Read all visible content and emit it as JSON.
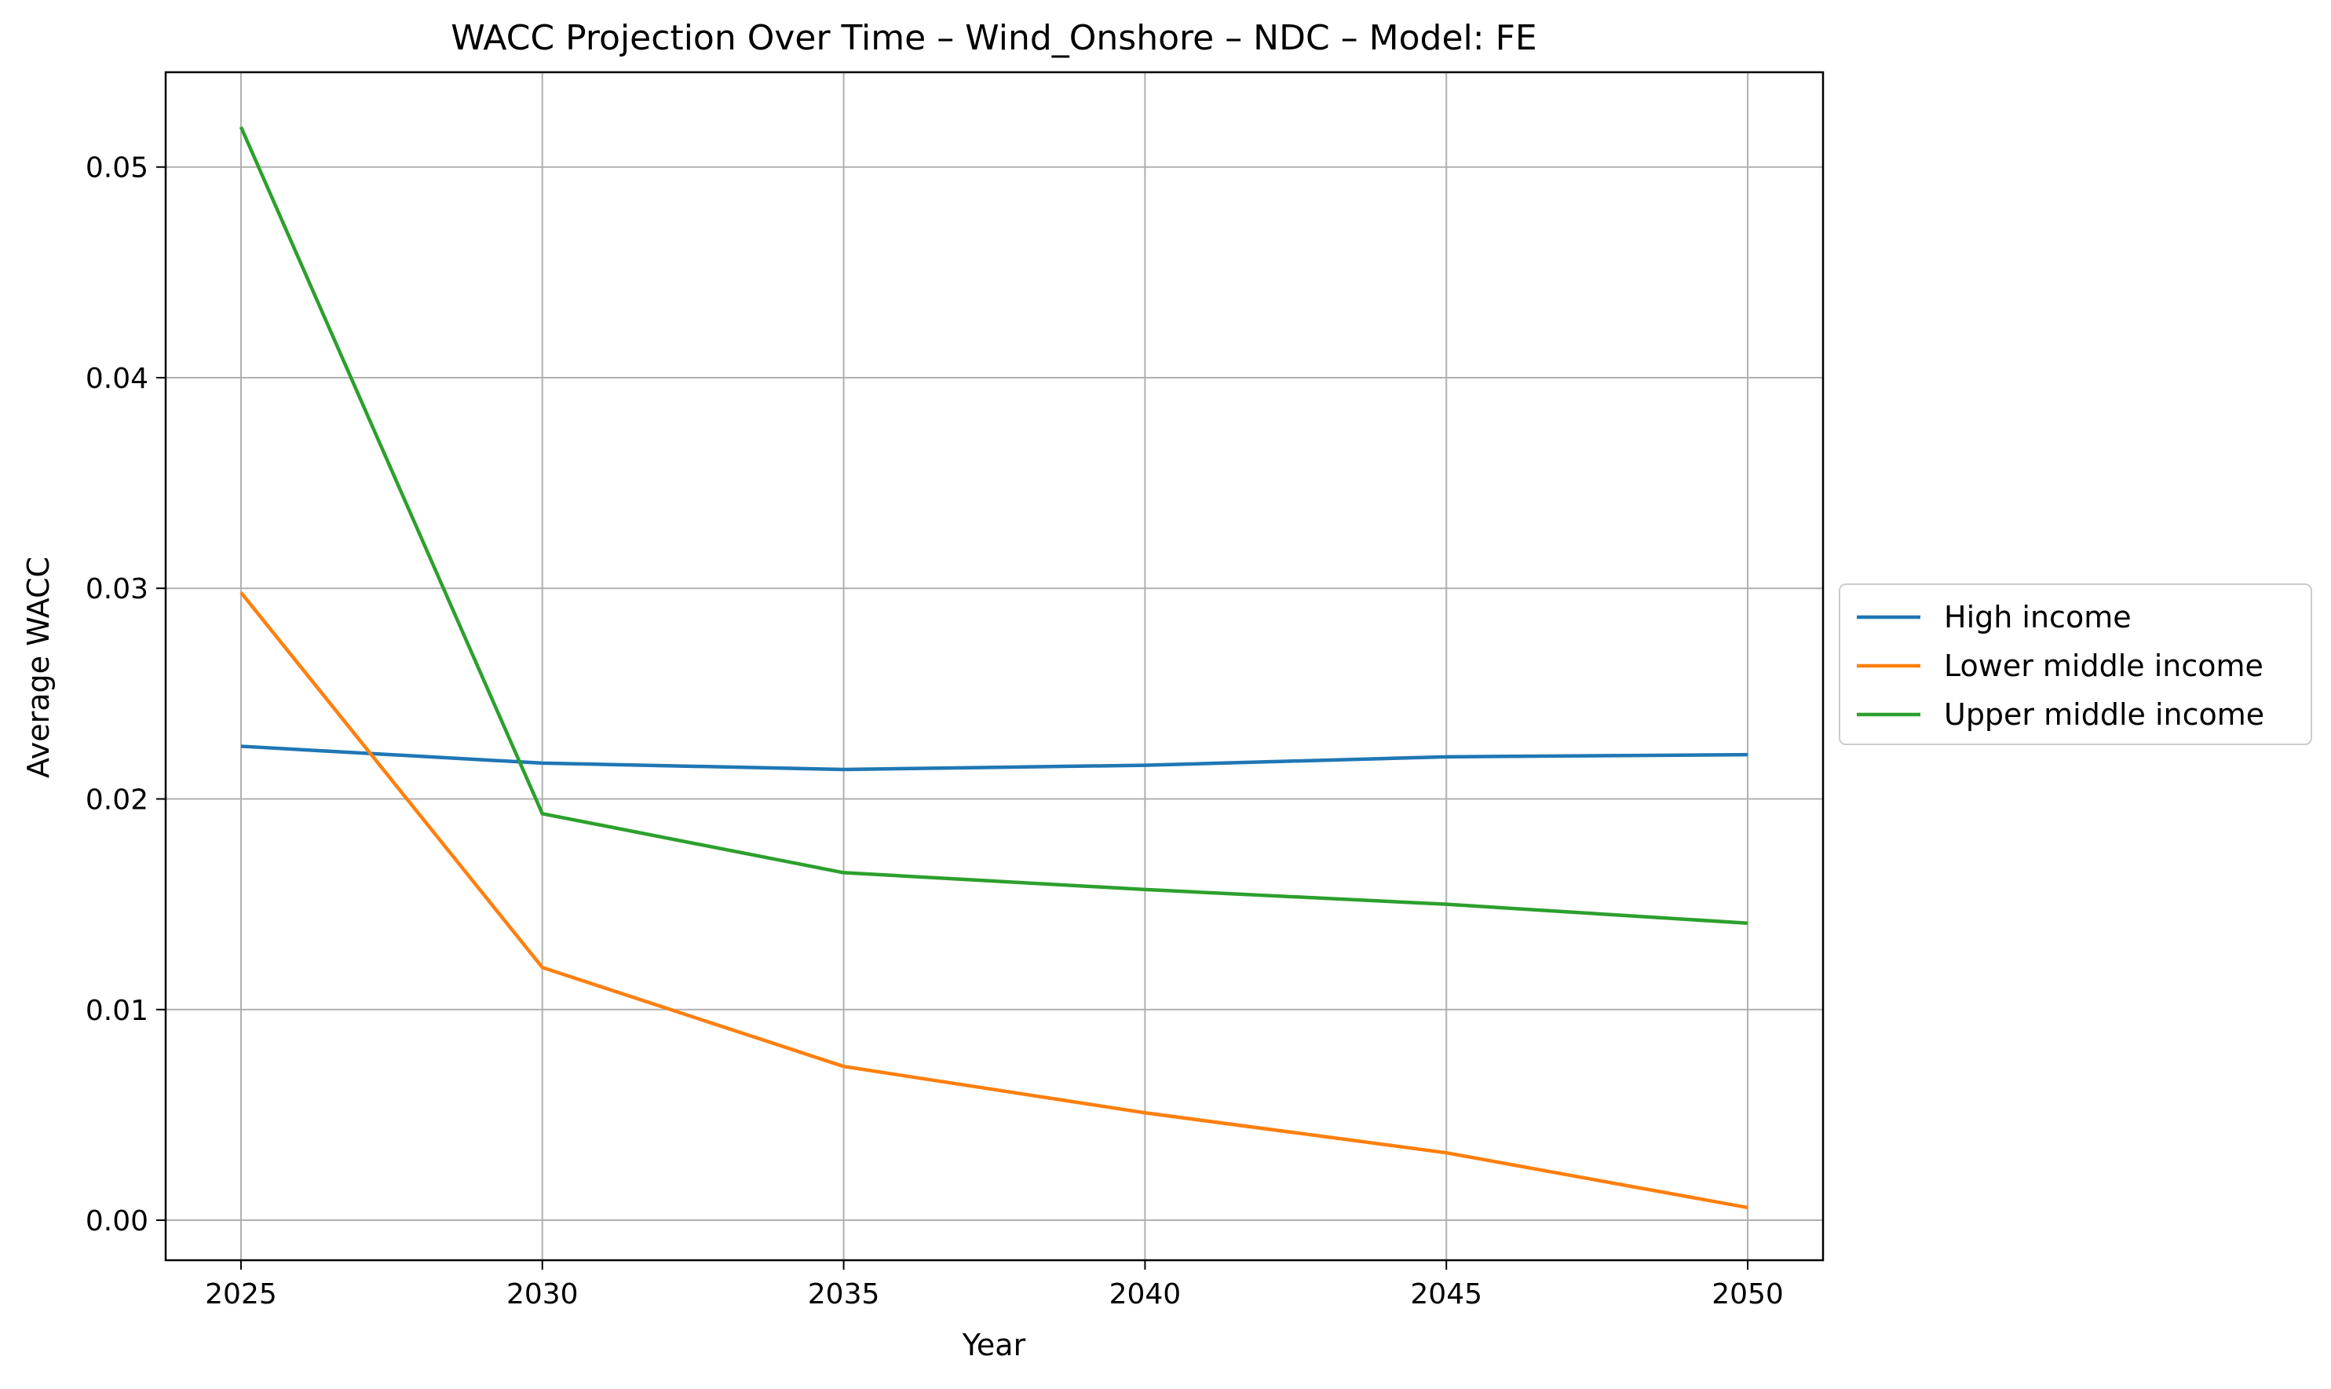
{
  "chart_data": {
    "type": "line",
    "title": "WACC Projection Over Time – Wind_Onshore – NDC – Model: FE",
    "xlabel": "Year",
    "ylabel": "Average WACC",
    "x": [
      2025,
      2030,
      2035,
      2040,
      2045,
      2050
    ],
    "xlim": [
      2023.75,
      2051.25
    ],
    "ylim": [
      -0.0019,
      0.0545
    ],
    "xticks": [
      "2025",
      "2030",
      "2035",
      "2040",
      "2045",
      "2050"
    ],
    "yticks": [
      "0.00",
      "0.01",
      "0.02",
      "0.03",
      "0.04",
      "0.05"
    ],
    "ytick_values": [
      0.0,
      0.01,
      0.02,
      0.03,
      0.04,
      0.05
    ],
    "grid": true,
    "legend_position": "center-right outside plot",
    "series": [
      {
        "name": "High income",
        "color": "#1f77b4",
        "values": [
          0.0225,
          0.0217,
          0.0214,
          0.0216,
          0.022,
          0.0221
        ]
      },
      {
        "name": "Lower middle income",
        "color": "#ff7f0e",
        "values": [
          0.0298,
          0.012,
          0.0073,
          0.0051,
          0.0032,
          0.0006
        ]
      },
      {
        "name": "Upper middle income",
        "color": "#2ca02c",
        "values": [
          0.0519,
          0.0193,
          0.0165,
          0.0157,
          0.015,
          0.0141
        ]
      }
    ]
  }
}
